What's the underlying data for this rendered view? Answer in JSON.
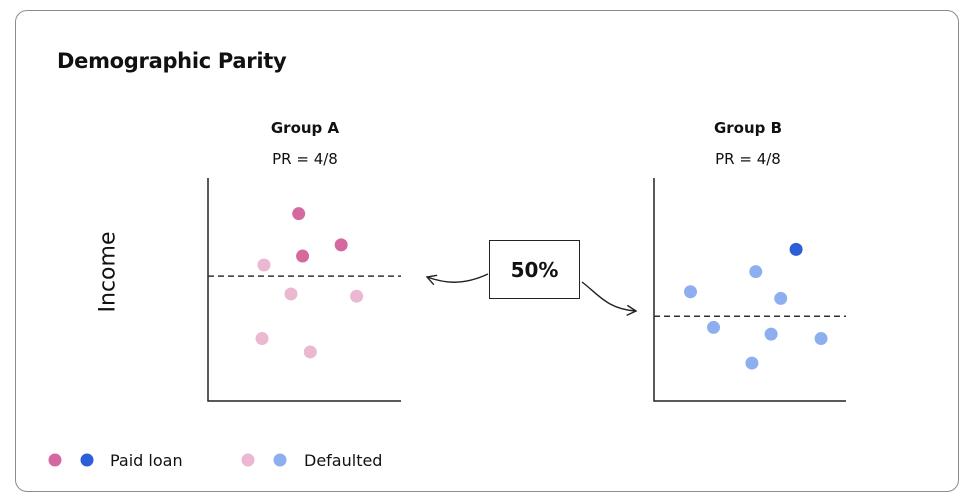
{
  "title": "Demographic Parity",
  "y_axis_label": "Income",
  "center_label": "50%",
  "colors": {
    "group_a_paid": "#d5699f",
    "group_a_defaulted": "#ebb7d1",
    "group_b_paid": "#2a5fd8",
    "group_b_defaulted": "#8daff0"
  },
  "groups": [
    {
      "name": "Group A",
      "pr": "PR = 4/8",
      "paid_color": "#d5699f",
      "defaulted_color": "#ebb7d1",
      "points": [
        {
          "x": 0.47,
          "y": 0.84,
          "status": "paid"
        },
        {
          "x": 0.69,
          "y": 0.7,
          "status": "paid"
        },
        {
          "x": 0.49,
          "y": 0.65,
          "status": "paid"
        },
        {
          "x": 0.29,
          "y": 0.61,
          "status": "defaulted"
        },
        {
          "x": 0.43,
          "y": 0.48,
          "status": "defaulted"
        },
        {
          "x": 0.77,
          "y": 0.47,
          "status": "defaulted"
        },
        {
          "x": 0.28,
          "y": 0.28,
          "status": "defaulted"
        },
        {
          "x": 0.53,
          "y": 0.22,
          "status": "defaulted"
        }
      ],
      "threshold": 0.56
    },
    {
      "name": "Group B",
      "pr": "PR = 4/8",
      "paid_color": "#2a5fd8",
      "defaulted_color": "#8daff0",
      "points": [
        {
          "x": 0.74,
          "y": 0.68,
          "status": "paid"
        },
        {
          "x": 0.53,
          "y": 0.58,
          "status": "defaulted"
        },
        {
          "x": 0.19,
          "y": 0.49,
          "status": "defaulted"
        },
        {
          "x": 0.66,
          "y": 0.46,
          "status": "defaulted"
        },
        {
          "x": 0.31,
          "y": 0.33,
          "status": "defaulted"
        },
        {
          "x": 0.61,
          "y": 0.3,
          "status": "defaulted"
        },
        {
          "x": 0.87,
          "y": 0.28,
          "status": "defaulted"
        },
        {
          "x": 0.51,
          "y": 0.17,
          "status": "defaulted"
        }
      ],
      "threshold": 0.38
    }
  ],
  "legend": {
    "paid_label": "Paid loan",
    "defaulted_label": "Defaulted"
  }
}
